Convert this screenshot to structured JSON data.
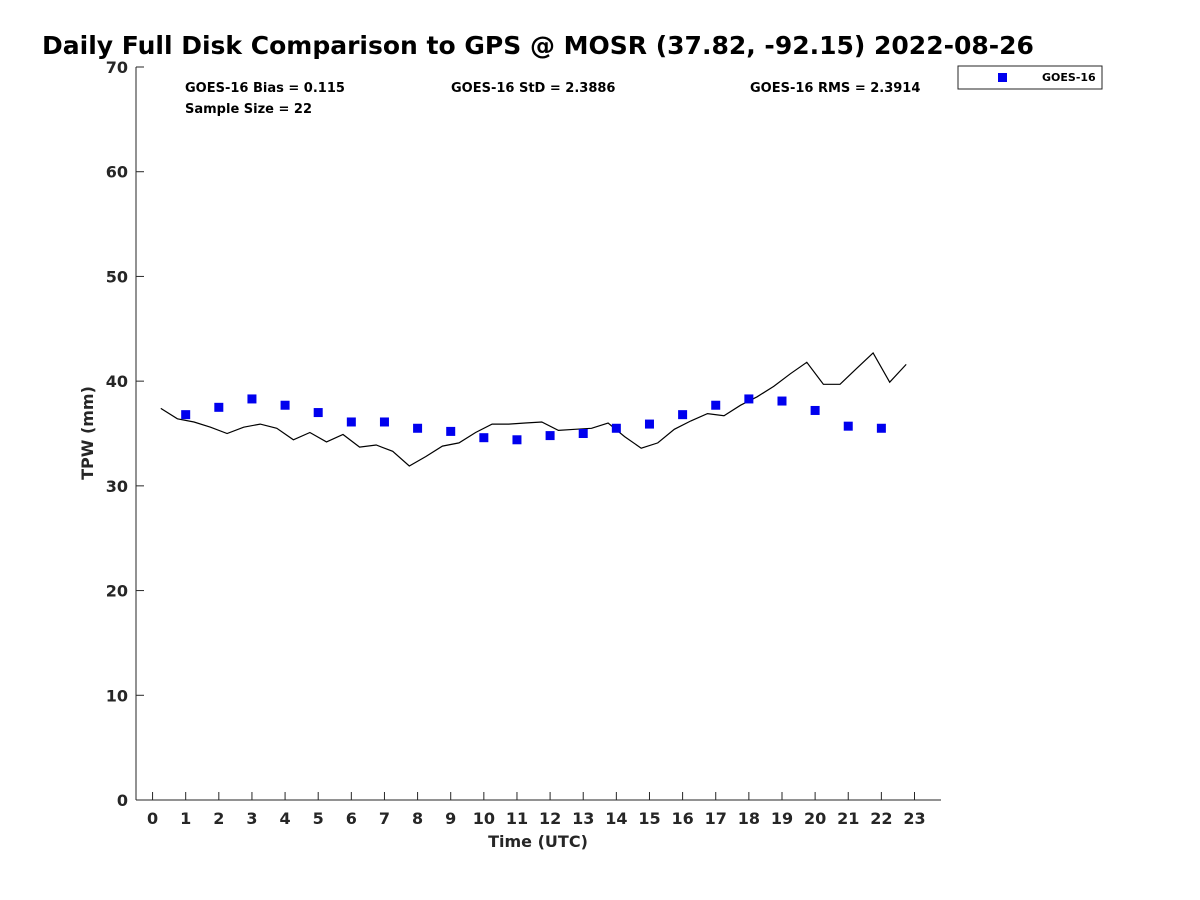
{
  "chart_data": {
    "type": "scatter",
    "title": "Daily Full Disk Comparison to GPS @ MOSR (37.82, -92.15) 2022-08-26",
    "xlabel": "Time (UTC)",
    "ylabel": "TPW (mm)",
    "xlim": [
      -0.5,
      23.8
    ],
    "ylim": [
      0,
      70
    ],
    "xticks": [
      0,
      1,
      2,
      3,
      4,
      5,
      6,
      7,
      8,
      9,
      10,
      11,
      12,
      13,
      14,
      15,
      16,
      17,
      18,
      19,
      20,
      21,
      22,
      23
    ],
    "yticks": [
      0,
      10,
      20,
      30,
      40,
      50,
      60,
      70
    ],
    "grid": false,
    "legend_position": "top-right outside",
    "stats": {
      "bias": "GOES-16 Bias = 0.115",
      "std": "GOES-16 StD = 2.3886",
      "rms": "GOES-16 RMS = 2.3914",
      "sample": "Sample Size = 22"
    },
    "series": [
      {
        "name": "GOES-16",
        "kind": "scatter",
        "color": "#0000ee",
        "x": [
          1,
          2,
          3,
          4,
          5,
          6,
          7,
          8,
          9,
          10,
          11,
          12,
          13,
          14,
          15,
          16,
          17,
          18,
          19,
          20,
          21,
          22
        ],
        "values": [
          36.8,
          37.5,
          38.3,
          37.7,
          37.0,
          36.1,
          36.1,
          35.5,
          35.2,
          34.6,
          34.4,
          34.8,
          35.0,
          35.5,
          35.9,
          36.8,
          37.7,
          38.3,
          38.1,
          37.2,
          35.7,
          35.5
        ]
      },
      {
        "kind": "line",
        "color": "#000000",
        "x": [
          0.25,
          0.75,
          1.25,
          1.75,
          2.25,
          2.75,
          3.25,
          3.75,
          4.25,
          4.75,
          5.25,
          5.75,
          6.25,
          6.75,
          7.25,
          7.75,
          8.25,
          8.75,
          9.25,
          9.75,
          10.25,
          10.75,
          11.25,
          11.75,
          12.25,
          12.75,
          13.25,
          13.75,
          14.25,
          14.75,
          15.25,
          15.75,
          16.25,
          16.75,
          17.25,
          17.75,
          18.25,
          18.75,
          19.25,
          19.75,
          20.25,
          20.75,
          21.25,
          21.75,
          22.25,
          22.75
        ],
        "values": [
          37.4,
          36.4,
          36.1,
          35.6,
          35.0,
          35.6,
          35.9,
          35.5,
          34.4,
          35.1,
          34.2,
          34.9,
          33.7,
          33.9,
          33.3,
          31.9,
          32.8,
          33.8,
          34.1,
          35.1,
          35.9,
          35.9,
          36.0,
          36.1,
          35.3,
          35.4,
          35.5,
          36.0,
          34.7,
          33.6,
          34.1,
          35.4,
          36.2,
          36.9,
          36.7,
          37.7,
          38.5,
          39.5,
          40.7,
          41.8,
          39.7,
          39.7,
          41.2,
          42.7,
          39.9,
          41.6
        ]
      }
    ]
  }
}
